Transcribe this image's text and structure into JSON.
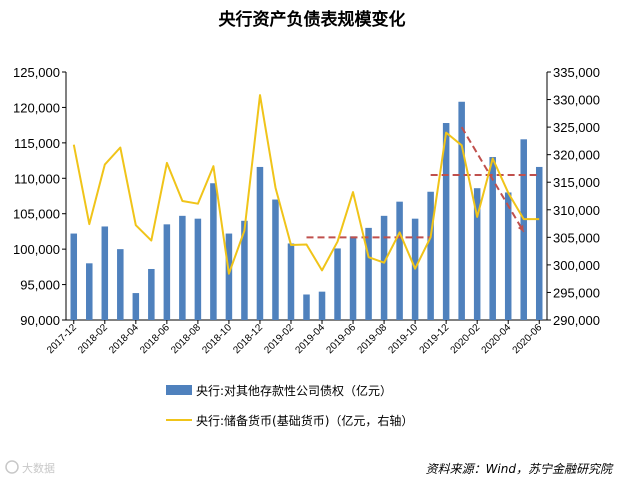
{
  "colors": {
    "bar": "#4f81bd",
    "line": "#f0c419",
    "trend": "#c0504d",
    "axis": "#000000",
    "watermark": "#c8c8c8"
  },
  "chart_data": {
    "type": "bar",
    "title": "央行资产负债表规模变化",
    "categories": [
      "2017-12",
      "2018-01",
      "2018-02",
      "2018-03",
      "2018-04",
      "2018-05",
      "2018-06",
      "2018-07",
      "2018-08",
      "2018-09",
      "2018-10",
      "2018-11",
      "2018-12",
      "2019-01",
      "2019-02",
      "2019-03",
      "2019-04",
      "2019-05",
      "2019-06",
      "2019-07",
      "2019-08",
      "2019-09",
      "2019-10",
      "2019-11",
      "2019-12",
      "2020-01",
      "2020-02",
      "2020-03",
      "2020-04",
      "2020-05",
      "2020-06"
    ],
    "x_tick_labels": [
      "2017-12",
      "2018-02",
      "2018-04",
      "2018-06",
      "2018-08",
      "2018-10",
      "2018-12",
      "2019-02",
      "2019-04",
      "2019-06",
      "2019-08",
      "2019-10",
      "2019-12",
      "2020-02",
      "2020-04",
      "2020-06"
    ],
    "left_axis": {
      "min": 90000,
      "max": 125000,
      "ticks": [
        "90,000",
        "95,000",
        "100,000",
        "105,000",
        "110,000",
        "115,000",
        "120,000",
        "125,000"
      ]
    },
    "right_axis": {
      "min": 290000,
      "max": 335000,
      "ticks": [
        "290,000",
        "295,000",
        "300,000",
        "305,000",
        "310,000",
        "315,000",
        "320,000",
        "325,000",
        "330,000",
        "335,000"
      ]
    },
    "series": [
      {
        "name": "央行:对其他存款性公司债权（亿元）",
        "type": "bar",
        "axis": "left",
        "values": [
          102200,
          98000,
          103200,
          100000,
          93800,
          97200,
          103500,
          104700,
          104300,
          109300,
          102200,
          104000,
          111600,
          107000,
          100800,
          93600,
          94000,
          100100,
          101800,
          103000,
          104700,
          106700,
          104300,
          108100,
          117800,
          120800,
          108600,
          113000,
          108000,
          115500,
          111600
        ]
      },
      {
        "name": "央行:储备货币(基础货币)（亿元，右轴）",
        "type": "line",
        "axis": "right",
        "values": [
          321800,
          307400,
          318200,
          321300,
          307200,
          304400,
          318500,
          311600,
          311100,
          317900,
          298400,
          306200,
          330800,
          314000,
          303600,
          303700,
          299000,
          304200,
          313200,
          301400,
          300400,
          305900,
          299300,
          305000,
          324000,
          321700,
          308700,
          319300,
          313100,
          308300,
          308300
        ]
      }
    ],
    "annotations": [
      {
        "type": "dashed-trend",
        "from": [
          "2019-03",
          305000
        ],
        "to": [
          "2019-11",
          305000
        ]
      },
      {
        "type": "dashed-trend",
        "from": [
          "2019-11",
          316300
        ],
        "to": [
          "2020-06",
          316300
        ]
      },
      {
        "type": "dashed-trend",
        "from": [
          "2020-01",
          325000
        ],
        "to": [
          "2020-05",
          306000
        ]
      }
    ]
  },
  "source_note": "资料来源：Wind，苏宁金融研究院",
  "watermark": "大数据"
}
